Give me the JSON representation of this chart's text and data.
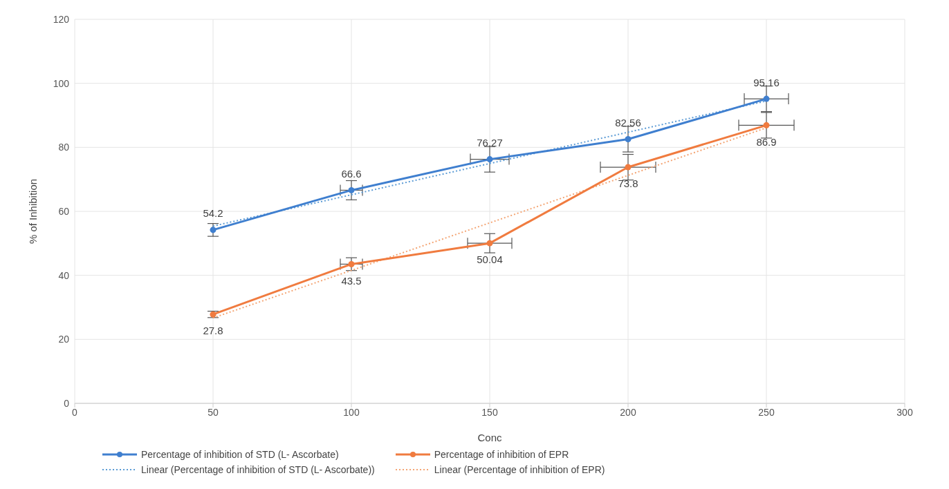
{
  "chart_data": {
    "type": "line",
    "xlabel": "Conc",
    "ylabel": "% of Inhibition",
    "xlim": [
      0,
      300
    ],
    "xticks": [
      0,
      50,
      100,
      150,
      200,
      250,
      300
    ],
    "ylim": [
      0,
      120
    ],
    "yticks": [
      0,
      20,
      40,
      60,
      80,
      100,
      120
    ],
    "grid": true,
    "legend": "bottom",
    "marker": "circle",
    "line_style": "solid",
    "series": [
      {
        "name": "Percentage of inhibition of STD (L- Ascorbate)",
        "color": "#3f7fcf",
        "data_labels": true,
        "x": [
          50,
          100,
          150,
          200,
          250
        ],
        "values": [
          54.2,
          66.6,
          76.27,
          82.56,
          95.16
        ],
        "errors": [
          2,
          3,
          4,
          4,
          4
        ],
        "xerrors": [
          null,
          4,
          7,
          null,
          8
        ]
      },
      {
        "name": "Percentage of inhibition of EPR",
        "color": "#f07b3f",
        "data_labels": true,
        "x": [
          50,
          100,
          150,
          200,
          250
        ],
        "values": [
          27.8,
          43.5,
          50.04,
          73.8,
          86.9
        ],
        "errors": [
          1,
          2,
          3,
          4,
          4
        ],
        "xerrors": [
          null,
          4,
          8,
          10,
          10
        ]
      },
      {
        "name": "Linear (Percentage of inhibition of STD (L- Ascorbate))",
        "type": "line",
        "color": "#5b9bd5",
        "line_style": "dotted",
        "marker": "none",
        "x": [
          50,
          250
        ],
        "values": [
          55.4,
          94.5
        ]
      },
      {
        "name": "Linear (Percentage of inhibition of EPR)",
        "type": "line",
        "color": "#f4a574",
        "line_style": "dotted",
        "marker": "none",
        "x": [
          50,
          250
        ],
        "values": [
          26.7,
          86.1
        ]
      }
    ]
  }
}
